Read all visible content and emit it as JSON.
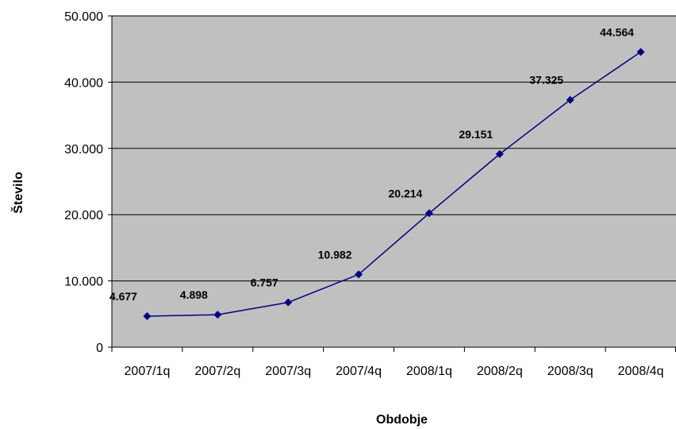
{
  "chart_data": {
    "type": "line",
    "title": "",
    "xlabel": "Obdobje",
    "ylabel": "Število",
    "categories": [
      "2007/1q",
      "2007/2q",
      "2007/3q",
      "2007/4q",
      "2008/1q",
      "2008/2q",
      "2008/3q",
      "2008/4q"
    ],
    "series": [
      {
        "values": [
          4677,
          4898,
          6757,
          10982,
          20214,
          29151,
          37325,
          44564
        ],
        "labels": [
          "4.677",
          "4.898",
          "6.757",
          "10.982",
          "20.214",
          "29.151",
          "37.325",
          "44.564"
        ]
      }
    ],
    "ylim": [
      0,
      50000
    ],
    "yticks": [
      0,
      10000,
      20000,
      30000,
      40000,
      50000
    ],
    "ytick_labels": [
      "0",
      "10.000",
      "20.000",
      "30.000",
      "40.000",
      "50.000"
    ],
    "grid": true,
    "legend": "none",
    "colors": {
      "plot_background": "#c0c0c0",
      "line": "#000080",
      "marker": "#000080",
      "grid": "#000000"
    }
  }
}
